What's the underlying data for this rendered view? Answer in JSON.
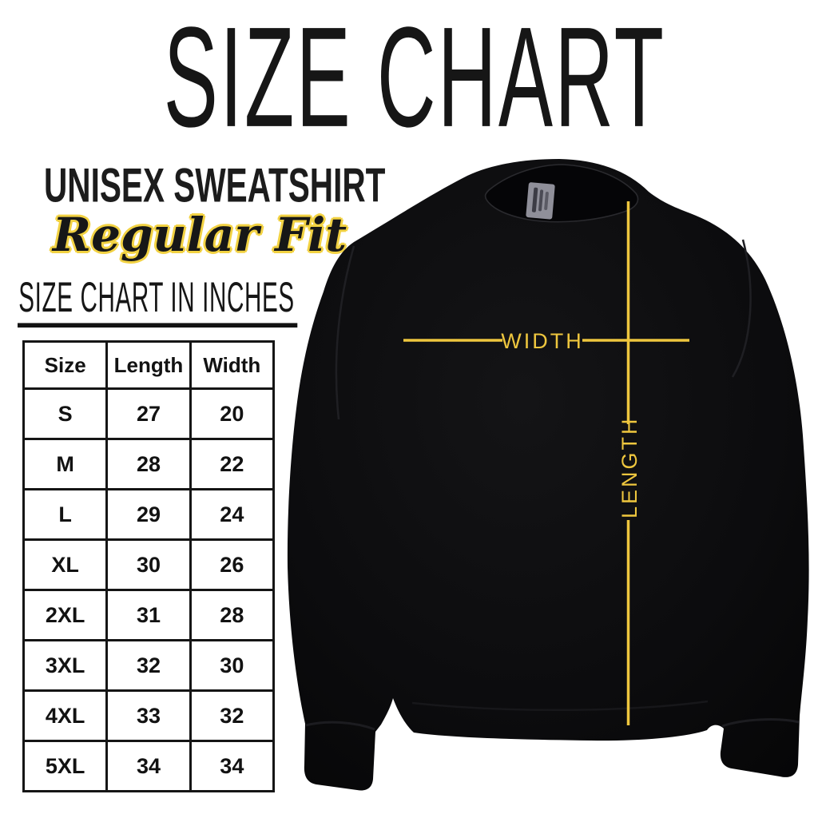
{
  "page": {
    "title": "SIZE CHART",
    "product_name": "UNISEX SWEATSHIRT",
    "fit_name": "Regular Fit",
    "table_heading": "SIZE CHART IN INCHES"
  },
  "size_table": {
    "headers": [
      "Size",
      "Length",
      "Width"
    ],
    "rows": [
      [
        "S",
        "27",
        "20"
      ],
      [
        "M",
        "28",
        "22"
      ],
      [
        "L",
        "29",
        "24"
      ],
      [
        "XL",
        "30",
        "26"
      ],
      [
        "2XL",
        "31",
        "28"
      ],
      [
        "3XL",
        "32",
        "30"
      ],
      [
        "4XL",
        "33",
        "32"
      ],
      [
        "5XL",
        "34",
        "34"
      ]
    ]
  },
  "diagram": {
    "width_label": "WIDTH",
    "length_label": "LENGTH",
    "garment": "black crewneck sweatshirt with gray neck tag"
  },
  "colors": {
    "accent_yellow": "#eec63e",
    "script_outline_yellow": "#f2d243",
    "ink": "#161616",
    "background": "#ffffff"
  },
  "chart_data": {
    "type": "table",
    "title": "SIZE CHART IN INCHES",
    "columns": [
      "Size",
      "Length",
      "Width"
    ],
    "units": "inches",
    "rows": [
      [
        "S",
        27,
        20
      ],
      [
        "M",
        28,
        22
      ],
      [
        "L",
        29,
        24
      ],
      [
        "XL",
        30,
        26
      ],
      [
        "2XL",
        31,
        28
      ],
      [
        "3XL",
        32,
        30
      ],
      [
        "4XL",
        33,
        32
      ],
      [
        "5XL",
        34,
        34
      ]
    ]
  }
}
